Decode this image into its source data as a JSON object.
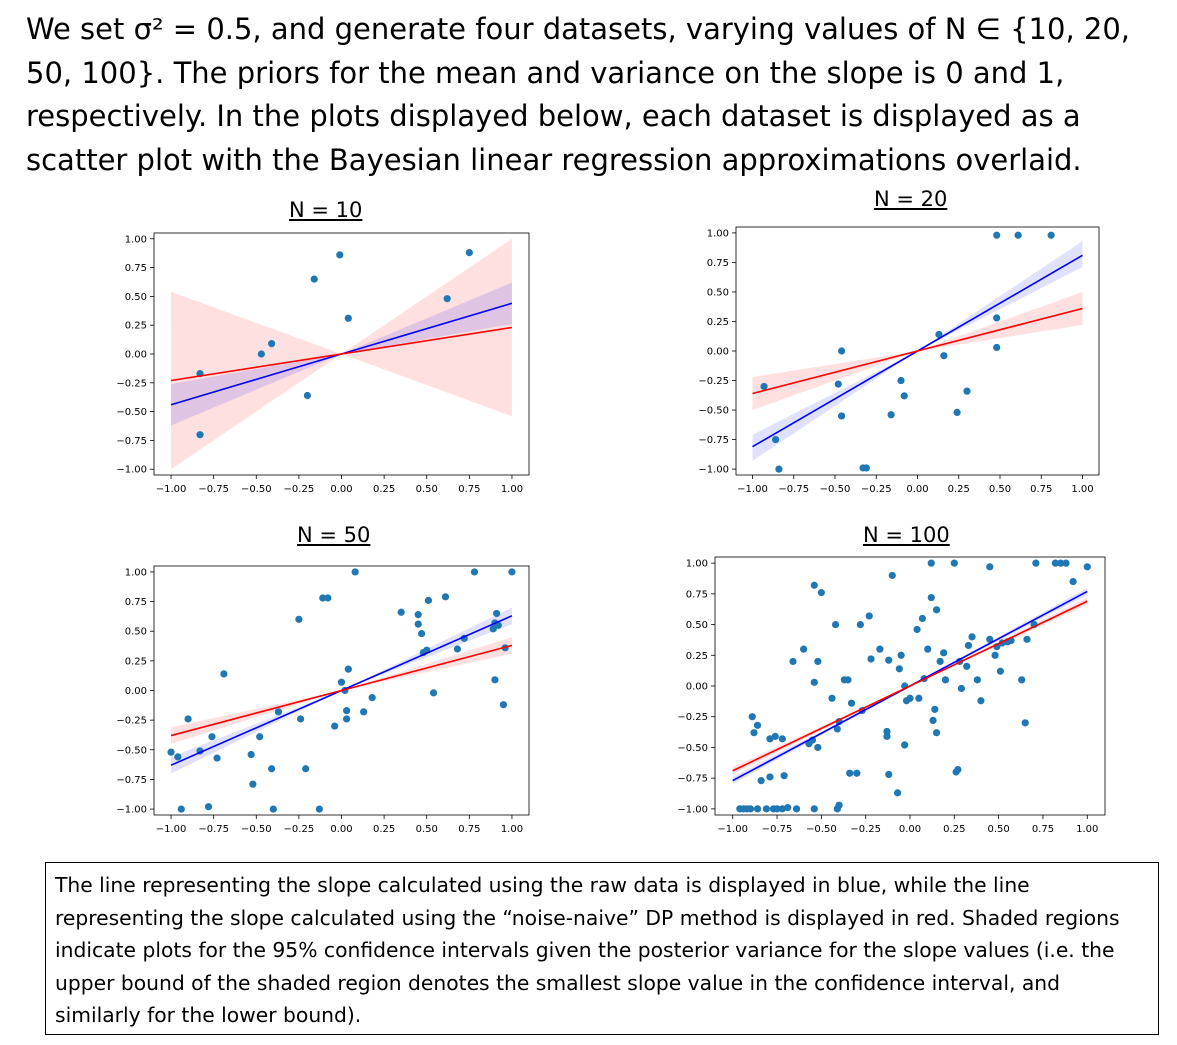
{
  "intro_text": "We set σ² = 0.5, and generate four datasets, varying values of N ∈ {10, 20, 50, 100}. The priors for the mean and variance on the slope is 0 and 1, respectively. In the plots displayed below, each dataset is displayed as a scatter plot with the Bayesian linear regression approximations overlaid.",
  "caption_text": "The line representing the slope calculated using the raw data is displayed in blue, while the line representing the slope calculated using the “noise-naive” DP method is displayed in red. Shaded regions indicate plots for the 95% confidence intervals given the posterior variance for the slope values (i.e. the upper bound of the shaded region denotes the smallest slope value in the confidence interval, and similarly for the lower bound).",
  "colors": {
    "point": "#1f77b4",
    "raw_line": "#0000ff",
    "dp_line": "#ff0000",
    "raw_band": "rgba(0,0,255,0.12)",
    "dp_band": "rgba(255,0,0,0.12)"
  },
  "chart_data": [
    {
      "type": "scatter",
      "title": "N = 10",
      "xlim": [
        -1.1,
        1.1
      ],
      "ylim": [
        -1.05,
        1.05
      ],
      "xticks": [
        "−1.00",
        "−0.75",
        "−0.50",
        "−0.25",
        "0.00",
        "0.25",
        "0.50",
        "0.75",
        "1.00"
      ],
      "yticks": [
        "1.00",
        "0.75",
        "0.50",
        "0.25",
        "0.00",
        "−0.25",
        "−0.50",
        "−0.75",
        "−1.00"
      ],
      "points": [
        [
          -0.83,
          -0.17
        ],
        [
          -0.83,
          -0.7
        ],
        [
          -0.47,
          0.0
        ],
        [
          -0.41,
          0.09
        ],
        [
          -0.2,
          -0.36
        ],
        [
          -0.16,
          0.65
        ],
        [
          -0.01,
          0.86
        ],
        [
          0.04,
          0.31
        ],
        [
          0.62,
          0.48
        ],
        [
          0.75,
          0.88
        ]
      ],
      "raw": {
        "x": [
          -1.0,
          1.0
        ],
        "slope": 0.44,
        "ci": [
          0.26,
          0.62
        ]
      },
      "dp": {
        "x": [
          -1.0,
          1.0
        ],
        "slope": 0.23,
        "ci": [
          -0.54,
          1.0
        ]
      }
    },
    {
      "type": "scatter",
      "title": "N = 20",
      "xlim": [
        -1.1,
        1.1
      ],
      "ylim": [
        -1.05,
        1.05
      ],
      "xticks": [
        "−1.00",
        "−0.75",
        "−0.50",
        "−0.25",
        "0.00",
        "0.25",
        "0.50",
        "0.75",
        "1.00"
      ],
      "yticks": [
        "1.00",
        "0.75",
        "0.50",
        "0.25",
        "0.00",
        "−0.25",
        "−0.50",
        "−0.75",
        "−1.00"
      ],
      "points": [
        [
          -0.93,
          -0.3
        ],
        [
          -0.86,
          -0.75
        ],
        [
          -0.84,
          -1.0
        ],
        [
          -0.48,
          -0.28
        ],
        [
          -0.46,
          -0.55
        ],
        [
          -0.46,
          0.0
        ],
        [
          -0.33,
          -0.99
        ],
        [
          -0.31,
          -0.99
        ],
        [
          -0.16,
          -0.54
        ],
        [
          -0.1,
          -0.25
        ],
        [
          -0.08,
          -0.38
        ],
        [
          0.13,
          0.14
        ],
        [
          0.16,
          -0.04
        ],
        [
          0.24,
          -0.52
        ],
        [
          0.3,
          -0.34
        ],
        [
          0.48,
          0.28
        ],
        [
          0.48,
          0.03
        ],
        [
          0.48,
          0.98
        ],
        [
          0.61,
          0.98
        ],
        [
          0.81,
          0.98
        ]
      ],
      "raw": {
        "x": [
          -1.0,
          1.0
        ],
        "slope": 0.81,
        "ci": [
          0.71,
          0.93
        ]
      },
      "dp": {
        "x": [
          -1.0,
          1.0
        ],
        "slope": 0.36,
        "ci": [
          0.22,
          0.5
        ]
      }
    },
    {
      "type": "scatter",
      "title": "N = 50",
      "xlim": [
        -1.1,
        1.1
      ],
      "ylim": [
        -1.05,
        1.05
      ],
      "xticks": [
        "−1.00",
        "−0.75",
        "−0.50",
        "−0.25",
        "0.00",
        "0.25",
        "0.50",
        "0.75",
        "1.00"
      ],
      "yticks": [
        "1.00",
        "0.75",
        "0.50",
        "0.25",
        "0.00",
        "−0.25",
        "−0.50",
        "−0.75",
        "−1.00"
      ],
      "points": [
        [
          -1.0,
          -0.52
        ],
        [
          -0.96,
          -0.56
        ],
        [
          -0.94,
          -1.0
        ],
        [
          -0.9,
          -0.24
        ],
        [
          -0.83,
          -0.51
        ],
        [
          -0.78,
          -0.98
        ],
        [
          -0.76,
          -0.39
        ],
        [
          -0.73,
          -0.57
        ],
        [
          -0.69,
          0.14
        ],
        [
          -0.53,
          -0.54
        ],
        [
          -0.52,
          -0.79
        ],
        [
          -0.48,
          -0.39
        ],
        [
          -0.41,
          -0.66
        ],
        [
          -0.4,
          -1.0
        ],
        [
          -0.37,
          -0.18
        ],
        [
          -0.25,
          0.6
        ],
        [
          -0.24,
          -0.24
        ],
        [
          -0.21,
          -0.66
        ],
        [
          -0.13,
          -1.0
        ],
        [
          -0.11,
          0.78
        ],
        [
          -0.08,
          0.78
        ],
        [
          -0.04,
          -0.3
        ],
        [
          0.0,
          0.07
        ],
        [
          0.02,
          0.0
        ],
        [
          0.03,
          -0.17
        ],
        [
          0.04,
          0.18
        ],
        [
          0.03,
          -0.24
        ],
        [
          0.08,
          1.0
        ],
        [
          0.13,
          -0.18
        ],
        [
          0.18,
          -0.06
        ],
        [
          0.35,
          0.66
        ],
        [
          0.45,
          0.64
        ],
        [
          0.45,
          0.56
        ],
        [
          0.47,
          0.48
        ],
        [
          0.48,
          0.32
        ],
        [
          0.5,
          0.34
        ],
        [
          0.51,
          0.76
        ],
        [
          0.54,
          -0.02
        ],
        [
          0.61,
          0.79
        ],
        [
          0.68,
          0.35
        ],
        [
          0.72,
          0.44
        ],
        [
          0.78,
          1.0
        ],
        [
          0.89,
          0.52
        ],
        [
          0.9,
          0.57
        ],
        [
          0.91,
          0.65
        ],
        [
          0.92,
          0.55
        ],
        [
          0.9,
          0.09
        ],
        [
          0.96,
          0.36
        ],
        [
          0.95,
          -0.12
        ],
        [
          1.0,
          1.0
        ]
      ],
      "raw": {
        "x": [
          -1.0,
          1.0
        ],
        "slope": 0.63,
        "ci": [
          0.56,
          0.7
        ]
      },
      "dp": {
        "x": [
          -1.0,
          1.0
        ],
        "slope": 0.38,
        "ci": [
          0.31,
          0.45
        ]
      }
    },
    {
      "type": "scatter",
      "title": "N = 100",
      "xlim": [
        -1.1,
        1.1
      ],
      "ylim": [
        -1.05,
        1.05
      ],
      "xticks": [
        "−1.00",
        "−0.75",
        "−0.50",
        "−0.25",
        "0.00",
        "0.25",
        "0.50",
        "0.75",
        "1.00"
      ],
      "yticks": [
        "1.00",
        "0.75",
        "0.50",
        "0.25",
        "0.00",
        "−0.25",
        "−0.50",
        "−0.75",
        "−1.00"
      ],
      "points": [
        [
          -0.96,
          -1.0
        ],
        [
          -0.94,
          -1.0
        ],
        [
          -0.92,
          -1.0
        ],
        [
          -0.9,
          -1.0
        ],
        [
          -0.86,
          -1.0
        ],
        [
          -0.81,
          -1.0
        ],
        [
          -0.77,
          -1.0
        ],
        [
          -0.75,
          -1.0
        ],
        [
          -0.72,
          -1.0
        ],
        [
          -0.69,
          -0.99
        ],
        [
          -0.64,
          -1.0
        ],
        [
          -0.54,
          -1.0
        ],
        [
          -0.41,
          -1.0
        ],
        [
          -0.4,
          -0.97
        ],
        [
          -0.89,
          -0.25
        ],
        [
          -0.88,
          -0.38
        ],
        [
          -0.86,
          -0.32
        ],
        [
          -0.84,
          -0.77
        ],
        [
          -0.79,
          -0.74
        ],
        [
          -0.79,
          -0.43
        ],
        [
          -0.76,
          -0.41
        ],
        [
          -0.72,
          -0.43
        ],
        [
          -0.71,
          -0.73
        ],
        [
          -0.66,
          0.2
        ],
        [
          -0.6,
          0.3
        ],
        [
          -0.57,
          -0.47
        ],
        [
          -0.55,
          -0.44
        ],
        [
          -0.52,
          -0.5
        ],
        [
          -0.54,
          0.03
        ],
        [
          -0.52,
          0.2
        ],
        [
          -0.54,
          0.82
        ],
        [
          -0.5,
          0.76
        ],
        [
          -0.44,
          -0.1
        ],
        [
          -0.42,
          0.5
        ],
        [
          -0.41,
          -0.35
        ],
        [
          -0.4,
          -0.29
        ],
        [
          -0.37,
          0.05
        ],
        [
          -0.35,
          0.05
        ],
        [
          -0.34,
          -0.71
        ],
        [
          -0.33,
          -0.14
        ],
        [
          -0.3,
          -0.71
        ],
        [
          -0.28,
          0.5
        ],
        [
          -0.27,
          -0.2
        ],
        [
          -0.23,
          0.57
        ],
        [
          -0.22,
          0.22
        ],
        [
          -0.17,
          0.3
        ],
        [
          -0.13,
          -0.41
        ],
        [
          -0.13,
          -0.37
        ],
        [
          -0.12,
          0.21
        ],
        [
          -0.12,
          -0.72
        ],
        [
          -0.1,
          0.9
        ],
        [
          -0.07,
          -0.87
        ],
        [
          -0.06,
          0.14
        ],
        [
          -0.05,
          0.25
        ],
        [
          -0.03,
          -0.48
        ],
        [
          -0.03,
          0.0
        ],
        [
          -0.02,
          -0.12
        ],
        [
          0.0,
          -0.1
        ],
        [
          0.04,
          0.46
        ],
        [
          0.05,
          -0.1
        ],
        [
          0.07,
          0.55
        ],
        [
          0.08,
          0.06
        ],
        [
          0.1,
          0.3
        ],
        [
          0.12,
          1.0
        ],
        [
          0.12,
          0.72
        ],
        [
          0.13,
          -0.28
        ],
        [
          0.14,
          -0.19
        ],
        [
          0.15,
          0.62
        ],
        [
          0.15,
          -0.38
        ],
        [
          0.17,
          0.2
        ],
        [
          0.19,
          0.27
        ],
        [
          0.2,
          0.05
        ],
        [
          0.25,
          1.0
        ],
        [
          0.26,
          -0.7
        ],
        [
          0.27,
          -0.68
        ],
        [
          0.28,
          0.2
        ],
        [
          0.29,
          -0.02
        ],
        [
          0.32,
          0.16
        ],
        [
          0.33,
          0.33
        ],
        [
          0.35,
          0.4
        ],
        [
          0.38,
          0.05
        ],
        [
          0.4,
          -0.12
        ],
        [
          0.45,
          0.97
        ],
        [
          0.45,
          0.38
        ],
        [
          0.48,
          0.25
        ],
        [
          0.49,
          0.32
        ],
        [
          0.51,
          0.12
        ],
        [
          0.52,
          0.35
        ],
        [
          0.55,
          0.36
        ],
        [
          0.57,
          0.37
        ],
        [
          0.63,
          0.05
        ],
        [
          0.65,
          -0.3
        ],
        [
          0.66,
          0.38
        ],
        [
          0.7,
          0.5
        ],
        [
          0.71,
          1.0
        ],
        [
          0.82,
          1.0
        ],
        [
          0.85,
          1.0
        ],
        [
          0.88,
          1.0
        ],
        [
          0.92,
          0.85
        ],
        [
          1.0,
          0.97
        ]
      ],
      "raw": {
        "x": [
          -1.0,
          1.0
        ],
        "slope": 0.77,
        "ci": [
          0.74,
          0.8
        ]
      },
      "dp": {
        "x": [
          -1.0,
          1.0
        ],
        "slope": 0.69,
        "ci": [
          0.66,
          0.72
        ]
      }
    }
  ]
}
